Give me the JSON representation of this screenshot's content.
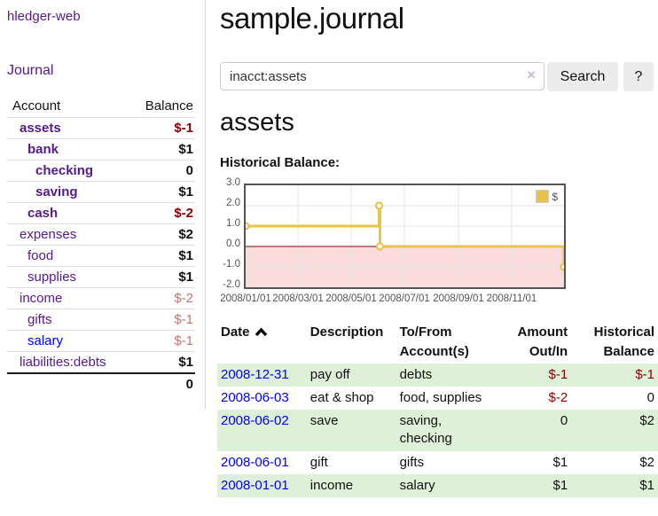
{
  "app": {
    "title": "hledger-web"
  },
  "sidebar": {
    "journal_link": "Journal",
    "table": {
      "account_header": "Account",
      "balance_header": "Balance",
      "rows": [
        {
          "name": "assets",
          "balance": "$-1",
          "level": 0,
          "in_account": true,
          "negative": true
        },
        {
          "name": "bank",
          "balance": "$1",
          "level": 1,
          "in_account": true,
          "negative": false
        },
        {
          "name": "checking",
          "balance": "0",
          "level": 2,
          "in_account": true,
          "negative": false
        },
        {
          "name": "saving",
          "balance": "$1",
          "level": 2,
          "in_account": true,
          "negative": false
        },
        {
          "name": "cash",
          "balance": "$-2",
          "level": 1,
          "in_account": true,
          "negative": true
        },
        {
          "name": "expenses",
          "balance": "$2",
          "level": 0,
          "in_account": false,
          "negative": false
        },
        {
          "name": "food",
          "balance": "$1",
          "level": 1,
          "in_account": false,
          "negative": false
        },
        {
          "name": "supplies",
          "balance": "$1",
          "level": 1,
          "in_account": false,
          "negative": false
        },
        {
          "name": "income",
          "balance": "$-2",
          "level": 0,
          "in_account": false,
          "negative": true
        },
        {
          "name": "gifts",
          "balance": "$-1",
          "level": 1,
          "in_account": false,
          "negative": true
        },
        {
          "name": "salary",
          "balance": "$-1",
          "level": 1,
          "in_account": false,
          "negative": true
        },
        {
          "name": "liabilities:debts",
          "balance": "$1",
          "level": 0,
          "in_account": false,
          "negative": false
        }
      ],
      "total": "0"
    }
  },
  "header": {
    "title": "sample.journal"
  },
  "search": {
    "value": "inacct:assets",
    "clear_icon": "×",
    "button_label": "Search",
    "help_label": "?"
  },
  "account_page": {
    "title": "assets",
    "chart_label": "Historical Balance:"
  },
  "chart_data": {
    "type": "line",
    "title": "Historical Balance:",
    "line_style": "step",
    "series": [
      {
        "name": "$",
        "color": "#e8c24a",
        "points": [
          {
            "date": "2008/01/01",
            "day": 0,
            "value": 1.0
          },
          {
            "date": "2008/06/02",
            "day": 153,
            "value": 2.0
          },
          {
            "date": "2008/06/03",
            "day": 154,
            "value": 0.0
          },
          {
            "date": "2008/12/31",
            "day": 365,
            "value": -1.0
          }
        ]
      }
    ],
    "x_ticks": [
      {
        "label": "2008/01/01",
        "day": 0
      },
      {
        "label": "2008/03/01",
        "day": 60
      },
      {
        "label": "2008/05/01",
        "day": 121
      },
      {
        "label": "2008/07/01",
        "day": 182
      },
      {
        "label": "2008/09/01",
        "day": 244
      },
      {
        "label": "2008/11/01",
        "day": 305
      }
    ],
    "y_ticks": [
      3.0,
      2.0,
      1.0,
      0.0,
      -1.0,
      -2.0
    ],
    "ylim": [
      -2,
      3
    ],
    "xlim_days": [
      0,
      365
    ],
    "grid": true,
    "gridline_color": "#e6e6e6",
    "negative_region_color": "#fbdcdc",
    "zero_line_color": "#8b0000",
    "legend_position": "top-right"
  },
  "register": {
    "headers": {
      "date": "Date",
      "description": "Description",
      "accounts": "To/From Account(s)",
      "amount": "Amount Out/In",
      "balance": "Historical Balance"
    },
    "sort_icon": "caret-up",
    "rows": [
      {
        "date": "2008-12-31",
        "description": "pay off",
        "accounts": "debts",
        "amount": "$-1",
        "balance": "$-1"
      },
      {
        "date": "2008-06-03",
        "description": "eat & shop",
        "accounts": "food, supplies",
        "amount": "$-2",
        "balance": "0"
      },
      {
        "date": "2008-06-02",
        "description": "save",
        "accounts": "saving, checking",
        "amount": "0",
        "balance": "$2"
      },
      {
        "date": "2008-06-01",
        "description": "gift",
        "accounts": "gifts",
        "amount": "$1",
        "balance": "$2"
      },
      {
        "date": "2008-01-01",
        "description": "income",
        "accounts": "salary",
        "amount": "$1",
        "balance": "$1"
      }
    ]
  }
}
